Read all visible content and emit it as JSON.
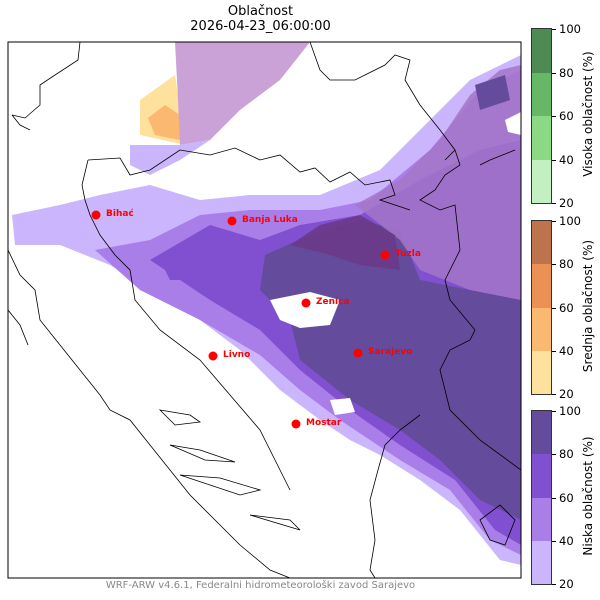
{
  "title": "Oblačnost",
  "subtitle": "2026-04-23_06:00:00",
  "footer": "WRF-ARW v4.6.1, Federalni hidrometeorološki zavod Sarajevo",
  "colorbars": [
    {
      "label": "Visoka oblačnost (%)",
      "ticks": [
        "100",
        "80",
        "60",
        "40",
        "20"
      ],
      "colors": [
        "#4e8b52",
        "#66b866",
        "#8bd985",
        "#c3f0c0"
      ]
    },
    {
      "label": "Srednja oblačnost (%)",
      "ticks": [
        "100",
        "80",
        "60",
        "40",
        "20"
      ],
      "colors": [
        "#bd744e",
        "#ec9155",
        "#fbb870",
        "#fde19c"
      ]
    },
    {
      "label": "Niska oblačnost (%)",
      "ticks": [
        "100",
        "80",
        "60",
        "40",
        "20"
      ],
      "colors": [
        "#654b9c",
        "#8150d0",
        "#a97ee9",
        "#cbb5fc"
      ]
    }
  ],
  "cities": [
    {
      "name": "Bihać"
    },
    {
      "name": "Banja Luka"
    },
    {
      "name": "Tuzla"
    },
    {
      "name": "Zenica"
    },
    {
      "name": "Livno"
    },
    {
      "name": "Sarajevo"
    },
    {
      "name": "Mostar"
    }
  ],
  "city_color": "#ff0000"
}
